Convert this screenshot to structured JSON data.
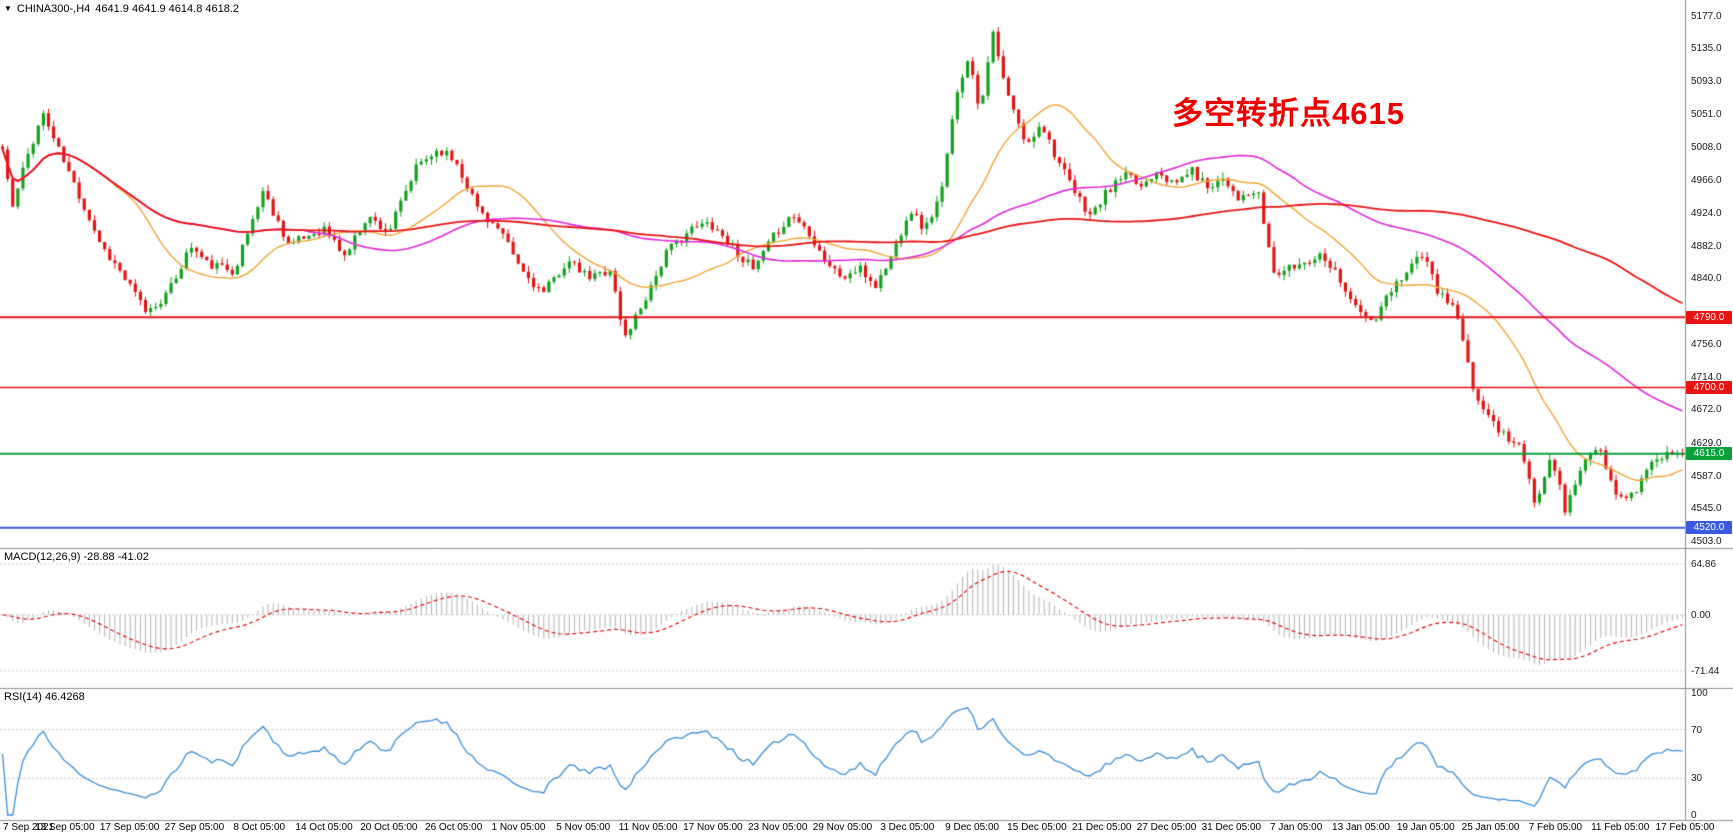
{
  "header": {
    "symbol_period": "CHINA300-,H4",
    "ohlc": "4641.9 4641.9 4614.8 4618.2"
  },
  "main_chart": {
    "annotation": {
      "text": "多空转折点4615",
      "color": "#f20000"
    },
    "y_ticks": [
      5177,
      5135,
      5093,
      5051,
      5008,
      4966,
      4924,
      4882,
      4840,
      4756,
      4714,
      4672,
      4629,
      4587,
      4545,
      4503
    ],
    "price_min": 4494,
    "price_max": 5197,
    "up_color": "#14a01e",
    "down_color": "#e11414",
    "h_lines": [
      {
        "value": 4790,
        "label": "4790.0",
        "color": "#e81414",
        "width": 2
      },
      {
        "value": 4700,
        "label": "4700.0",
        "color": "#e81414",
        "width": 1.5
      },
      {
        "value": 4615,
        "label": "4615.0",
        "color": "#0aa03c",
        "width": 2
      },
      {
        "value": 4520,
        "label": "4520.0",
        "color": "#3c5ae0",
        "width": 2
      }
    ],
    "ma_lines": [
      {
        "name": "ma-fast-orange",
        "period": 22,
        "color": "#efa63a",
        "width": 1.4
      },
      {
        "name": "ma-mid-magenta",
        "period": 60,
        "color": "#e02ad8",
        "width": 1.6
      },
      {
        "name": "ma-slow-red",
        "period": 130,
        "color": "#e81414",
        "width": 1.8
      }
    ]
  },
  "macd": {
    "label": "MACD(12,26,9) -28.88 -41.02",
    "fast": 12,
    "slow": 26,
    "signal_period": 9,
    "ticks": [
      64.86,
      0,
      -71.44
    ],
    "range": [
      -88,
      80
    ],
    "hist_color": "#b4b4b4",
    "signal_color": "#e11414"
  },
  "rsi": {
    "label": "RSI(14) 46.4268",
    "period": 14,
    "ticks": [
      100,
      70,
      30,
      0
    ],
    "levels": [
      70,
      30
    ],
    "color": "#3f8fd6"
  },
  "x_axis": {
    "labels": [
      "7 Sep 2021",
      "13 Sep 05:00",
      "17 Sep 05:00",
      "27 Sep 05:00",
      "8 Oct 05:00",
      "14 Oct 05:00",
      "20 Oct 05:00",
      "26 Oct 05:00",
      "1 Nov 05:00",
      "5 Nov 05:00",
      "11 Nov 05:00",
      "17 Nov 05:00",
      "23 Nov 05:00",
      "29 Nov 05:00",
      "3 Dec 05:00",
      "9 Dec 05:00",
      "15 Dec 05:00",
      "21 Dec 05:00",
      "27 Dec 05:00",
      "31 Dec 05:00",
      "7 Jan 05:00",
      "13 Jan 05:00",
      "19 Jan 05:00",
      "25 Jan 05:00",
      "7 Feb 05:00",
      "11 Feb 05:00",
      "17 Feb 05:00"
    ]
  },
  "chart_data": {
    "type": "candlestick",
    "title": "CHINA300-,H4",
    "bar_count": 330,
    "noise_seed": 11,
    "noise_amp": 6,
    "wick_extra": 8,
    "ylim": [
      4494,
      5197
    ],
    "close_waypoints": [
      [
        0.0,
        5005
      ],
      [
        0.006,
        4930
      ],
      [
        0.014,
        4992
      ],
      [
        0.024,
        5052
      ],
      [
        0.034,
        5002
      ],
      [
        0.059,
        4882
      ],
      [
        0.069,
        4852
      ],
      [
        0.086,
        4796
      ],
      [
        0.099,
        4822
      ],
      [
        0.112,
        4882
      ],
      [
        0.122,
        4858
      ],
      [
        0.138,
        4850
      ],
      [
        0.155,
        4952
      ],
      [
        0.171,
        4882
      ],
      [
        0.191,
        4905
      ],
      [
        0.204,
        4868
      ],
      [
        0.217,
        4920
      ],
      [
        0.23,
        4900
      ],
      [
        0.247,
        4985
      ],
      [
        0.26,
        5006
      ],
      [
        0.27,
        4990
      ],
      [
        0.283,
        4930
      ],
      [
        0.296,
        4900
      ],
      [
        0.309,
        4850
      ],
      [
        0.322,
        4820
      ],
      [
        0.336,
        4862
      ],
      [
        0.349,
        4840
      ],
      [
        0.362,
        4852
      ],
      [
        0.37,
        4762
      ],
      [
        0.382,
        4812
      ],
      [
        0.395,
        4872
      ],
      [
        0.408,
        4900
      ],
      [
        0.421,
        4912
      ],
      [
        0.434,
        4882
      ],
      [
        0.447,
        4850
      ],
      [
        0.461,
        4900
      ],
      [
        0.47,
        4922
      ],
      [
        0.48,
        4900
      ],
      [
        0.49,
        4862
      ],
      [
        0.5,
        4840
      ],
      [
        0.51,
        4852
      ],
      [
        0.52,
        4830
      ],
      [
        0.53,
        4872
      ],
      [
        0.54,
        4930
      ],
      [
        0.549,
        4902
      ],
      [
        0.559,
        4950
      ],
      [
        0.569,
        5092
      ],
      [
        0.576,
        5122
      ],
      [
        0.582,
        5052
      ],
      [
        0.589,
        5158
      ],
      [
        0.596,
        5092
      ],
      [
        0.602,
        5052
      ],
      [
        0.61,
        5008
      ],
      [
        0.618,
        5042
      ],
      [
        0.628,
        4992
      ],
      [
        0.638,
        4950
      ],
      [
        0.648,
        4920
      ],
      [
        0.658,
        4952
      ],
      [
        0.668,
        4972
      ],
      [
        0.678,
        4958
      ],
      [
        0.688,
        4982
      ],
      [
        0.697,
        4958
      ],
      [
        0.707,
        4980
      ],
      [
        0.717,
        4958
      ],
      [
        0.727,
        4970
      ],
      [
        0.737,
        4940
      ],
      [
        0.747,
        4952
      ],
      [
        0.757,
        4845
      ],
      [
        0.766,
        4852
      ],
      [
        0.776,
        4862
      ],
      [
        0.786,
        4872
      ],
      [
        0.796,
        4840
      ],
      [
        0.806,
        4800
      ],
      [
        0.816,
        4782
      ],
      [
        0.826,
        4822
      ],
      [
        0.836,
        4852
      ],
      [
        0.845,
        4872
      ],
      [
        0.855,
        4820
      ],
      [
        0.865,
        4800
      ],
      [
        0.875,
        4700
      ],
      [
        0.885,
        4660
      ],
      [
        0.894,
        4640
      ],
      [
        0.904,
        4622
      ],
      [
        0.912,
        4548
      ],
      [
        0.922,
        4618
      ],
      [
        0.93,
        4542
      ],
      [
        0.94,
        4600
      ],
      [
        0.95,
        4622
      ],
      [
        0.96,
        4562
      ],
      [
        0.97,
        4560
      ],
      [
        0.98,
        4600
      ],
      [
        0.99,
        4615
      ],
      [
        1.0,
        4618.2
      ]
    ]
  }
}
